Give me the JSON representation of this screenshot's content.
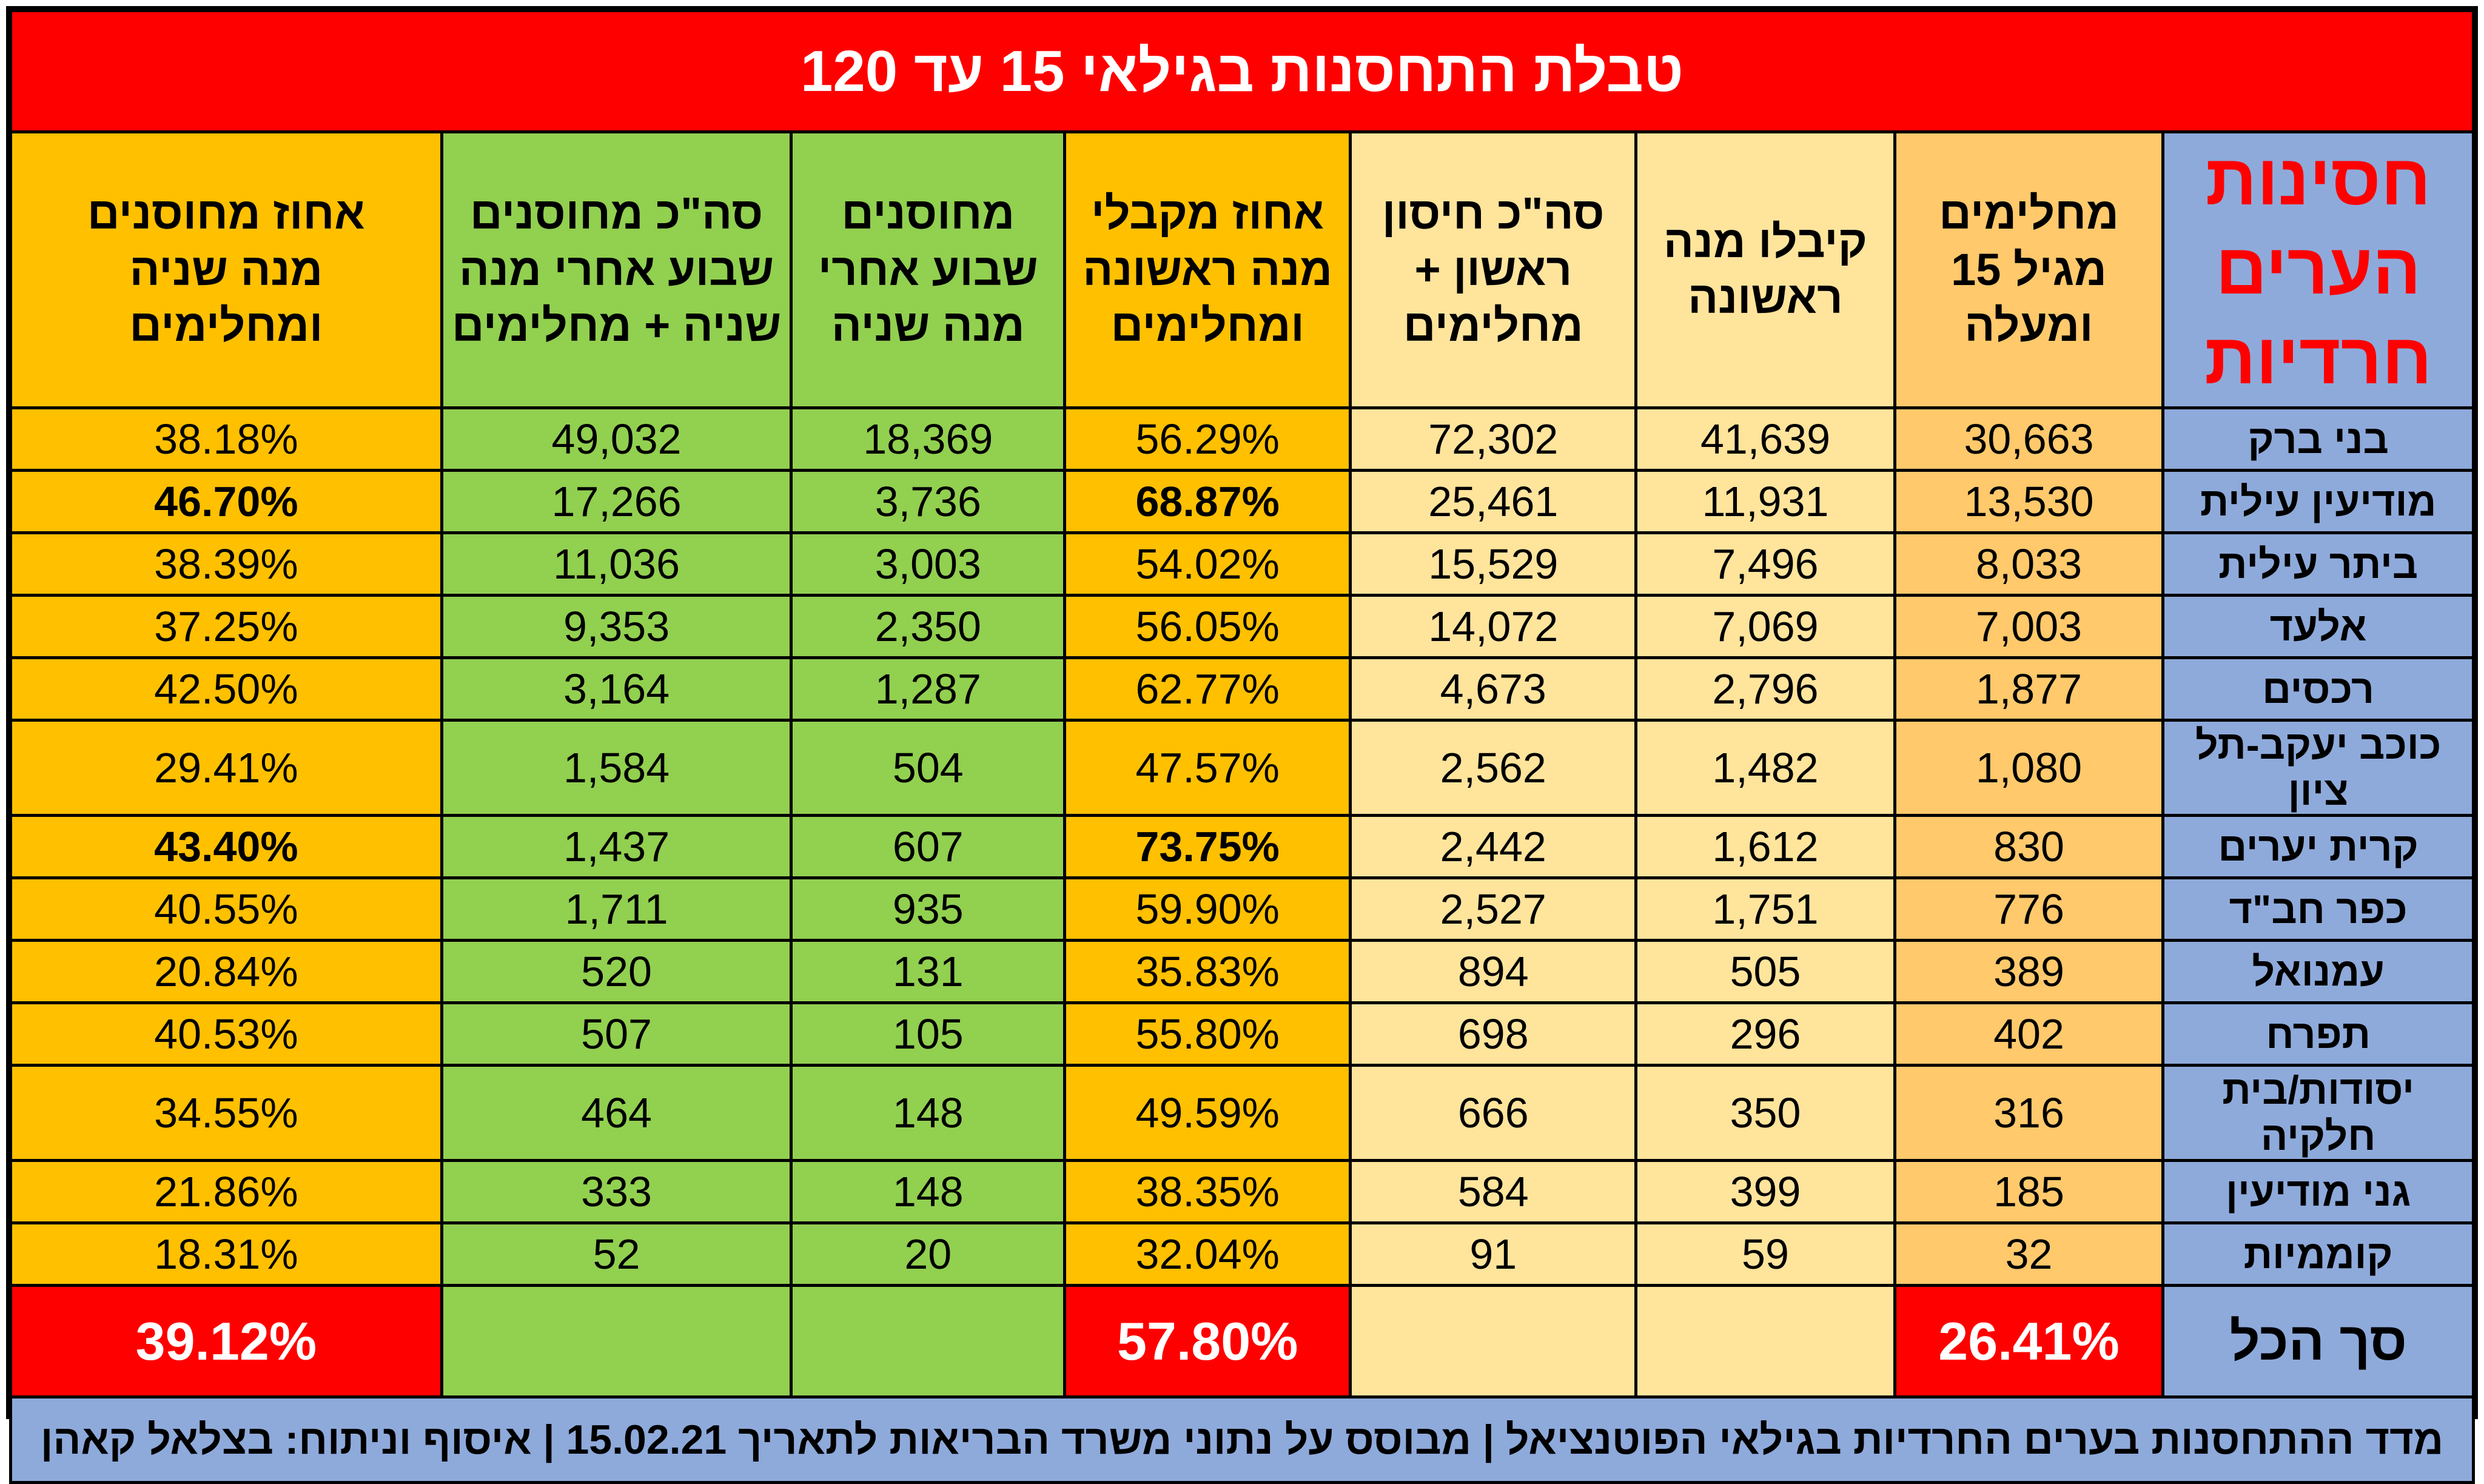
{
  "title": "טבלת התחסנות בגילאי 15 עד 120",
  "chart_data": {
    "type": "table",
    "headers": [
      "חסינות\nהערים\nחרדיות",
      "מחלימים\nמגיל 15\nומעלה",
      "קיבלו מנה\nראשונה",
      "סה\"כ חיסון\nראשון +\nמחלימים",
      "אחוז מקבלי\nמנה ראשונה\nומחלימים",
      "מחוסנים\nשבוע אחרי\nמנה שניה",
      "סה\"כ מחוסנים\nשבוע אחרי מנה\nשניה + מחלימים",
      "אחוז מחוסנים\nמנה שניה\nומחלימים"
    ],
    "rows": [
      {
        "city": "בני ברק",
        "values": [
          "30,663",
          "41,639",
          "72,302",
          "56.29%",
          "18,369",
          "49,032",
          "38.18%"
        ],
        "bold": false
      },
      {
        "city": "מודיעין עילית",
        "values": [
          "13,530",
          "11,931",
          "25,461",
          "68.87%",
          "3,736",
          "17,266",
          "46.70%"
        ],
        "bold": true
      },
      {
        "city": "ביתר עילית",
        "values": [
          "8,033",
          "7,496",
          "15,529",
          "54.02%",
          "3,003",
          "11,036",
          "38.39%"
        ],
        "bold": false
      },
      {
        "city": "אלעד",
        "values": [
          "7,003",
          "7,069",
          "14,072",
          "56.05%",
          "2,350",
          "9,353",
          "37.25%"
        ],
        "bold": false
      },
      {
        "city": "רכסים",
        "values": [
          "1,877",
          "2,796",
          "4,673",
          "62.77%",
          "1,287",
          "3,164",
          "42.50%"
        ],
        "bold": false
      },
      {
        "city": "כוכב יעקב-תל ציון",
        "values": [
          "1,080",
          "1,482",
          "2,562",
          "47.57%",
          "504",
          "1,584",
          "29.41%"
        ],
        "bold": false
      },
      {
        "city": "קרית יערים",
        "values": [
          "830",
          "1,612",
          "2,442",
          "73.75%",
          "607",
          "1,437",
          "43.40%"
        ],
        "bold": true
      },
      {
        "city": "כפר חב\"ד",
        "values": [
          "776",
          "1,751",
          "2,527",
          "59.90%",
          "935",
          "1,711",
          "40.55%"
        ],
        "bold": false
      },
      {
        "city": "עמנואל",
        "values": [
          "389",
          "505",
          "894",
          "35.83%",
          "131",
          "520",
          "20.84%"
        ],
        "bold": false
      },
      {
        "city": "תפרח",
        "values": [
          "402",
          "296",
          "698",
          "55.80%",
          "105",
          "507",
          "40.53%"
        ],
        "bold": false
      },
      {
        "city": "יסודות/בית חלקיה",
        "values": [
          "316",
          "350",
          "666",
          "49.59%",
          "148",
          "464",
          "34.55%"
        ],
        "bold": false
      },
      {
        "city": "גני מודיעין",
        "values": [
          "185",
          "399",
          "584",
          "38.35%",
          "148",
          "333",
          "21.86%"
        ],
        "bold": false
      },
      {
        "city": "קוממיות",
        "values": [
          "32",
          "59",
          "91",
          "32.04%",
          "20",
          "52",
          "18.31%"
        ],
        "bold": false
      }
    ],
    "total": {
      "label": "סך הכל",
      "values": [
        "26.41%",
        "",
        "",
        "57.80%",
        "",
        "",
        "39.12%"
      ]
    }
  },
  "footer": "מדד ההתחסנות בערים החרדיות בגילאי הפוטנציאל | מבוסס על נתוני משרד הבריאות לתאריך 15.02.21 | איסוף וניתוח: בצלאל קאהן",
  "colors": {
    "title_bg": "#ff0000",
    "blue": "#8eaadb",
    "light_orange": "#ffc96c",
    "light_yellow": "#ffe49c",
    "orange": "#ffc000",
    "green": "#92d050",
    "red": "#ff0000"
  }
}
